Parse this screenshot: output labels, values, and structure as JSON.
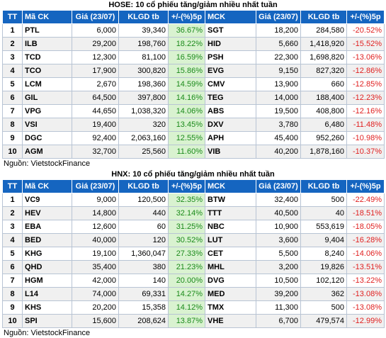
{
  "hose": {
    "title": "HOSE: 10 cổ phiếu tăng/giảm nhiều nhất tuần",
    "headers": [
      "TT",
      "Mã CK",
      "Giá (23/07)",
      "KLGD tb",
      "+/-(%)5p",
      "MCK",
      "Giá (23/07)",
      "KLGD tb",
      "+/-(%)5p"
    ],
    "rows": [
      [
        "1",
        "PTL",
        "6,000",
        "39,340",
        "36.67%",
        "SGT",
        "18,200",
        "284,580",
        "-20.52%"
      ],
      [
        "2",
        "ILB",
        "29,200",
        "198,760",
        "18.22%",
        "HID",
        "5,660",
        "1,418,920",
        "-15.52%"
      ],
      [
        "3",
        "TCD",
        "12,300",
        "81,100",
        "16.59%",
        "PSH",
        "22,300",
        "1,698,820",
        "-13.06%"
      ],
      [
        "4",
        "TCO",
        "17,900",
        "300,820",
        "15.86%",
        "EVG",
        "9,150",
        "827,320",
        "-12.86%"
      ],
      [
        "5",
        "LCM",
        "2,670",
        "198,360",
        "14.59%",
        "CMV",
        "13,900",
        "660",
        "-12.85%"
      ],
      [
        "6",
        "GIL",
        "64,500",
        "397,800",
        "14.16%",
        "TEG",
        "14,000",
        "188,400",
        "-12.23%"
      ],
      [
        "7",
        "VPG",
        "44,650",
        "1,038,320",
        "14.06%",
        "ABS",
        "19,500",
        "408,800",
        "-12.16%"
      ],
      [
        "8",
        "VSI",
        "19,400",
        "320",
        "13.45%",
        "DXV",
        "3,780",
        "6,480",
        "-11.48%"
      ],
      [
        "9",
        "DGC",
        "92,400",
        "2,063,160",
        "12.55%",
        "APH",
        "45,400",
        "952,260",
        "-10.98%"
      ],
      [
        "10",
        "AGM",
        "32,700",
        "25,560",
        "11.60%",
        "VIB",
        "40,200",
        "1,878,160",
        "-10.37%"
      ]
    ],
    "source": "Nguồn: VietstockFinance"
  },
  "hnx": {
    "title": "HNX: 10 cổ phiếu tăng/giảm nhiều nhất tuần",
    "headers": [
      "TT",
      "Mã CK",
      "Giá (23/07)",
      "KLGD tb",
      "+/-(%)5p",
      "MCK",
      "Giá (23/07)",
      "KLGD tb",
      "+/-(%)5p"
    ],
    "rows": [
      [
        "1",
        "VC9",
        "9,000",
        "120,500",
        "32.35%",
        "BTW",
        "32,400",
        "500",
        "-22.49%"
      ],
      [
        "2",
        "HEV",
        "14,800",
        "440",
        "32.14%",
        "TTT",
        "40,500",
        "40",
        "-18.51%"
      ],
      [
        "3",
        "EBA",
        "12,600",
        "60",
        "31.25%",
        "NBC",
        "10,900",
        "553,619",
        "-18.05%"
      ],
      [
        "4",
        "BED",
        "40,000",
        "120",
        "30.52%",
        "LUT",
        "3,600",
        "9,404",
        "-16.28%"
      ],
      [
        "5",
        "KHG",
        "19,100",
        "1,360,047",
        "27.33%",
        "CET",
        "5,500",
        "8,240",
        "-14.06%"
      ],
      [
        "6",
        "QHD",
        "35,400",
        "380",
        "21.23%",
        "MHL",
        "3,200",
        "19,826",
        "-13.51%"
      ],
      [
        "7",
        "HGM",
        "42,000",
        "140",
        "20.00%",
        "DVG",
        "10,500",
        "102,120",
        "-13.22%"
      ],
      [
        "8",
        "L14",
        "74,000",
        "69,331",
        "14.27%",
        "MED",
        "39,200",
        "362",
        "-13.08%"
      ],
      [
        "9",
        "KHS",
        "20,200",
        "15,358",
        "14.12%",
        "TMX",
        "11,300",
        "500",
        "-13.08%"
      ],
      [
        "10",
        "SPI",
        "15,600",
        "208,624",
        "13.87%",
        "VHE",
        "6,700",
        "479,574",
        "-12.99%"
      ]
    ],
    "source": "Nguồn: VietstockFinance"
  }
}
